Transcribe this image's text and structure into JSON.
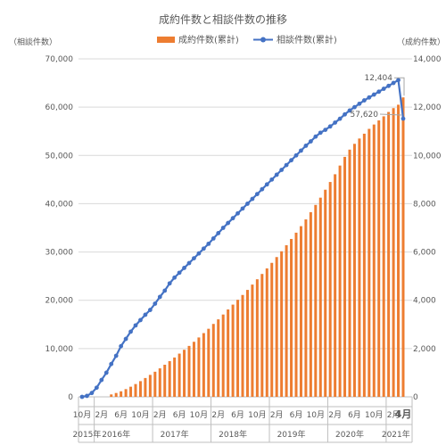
{
  "chart_data": {
    "type": "bar+line",
    "title": "成約件数と相談件数の推移",
    "left_axis_label": "（相談件数）",
    "right_axis_label": "（成約件数）",
    "left_ylim": [
      0,
      70000
    ],
    "right_ylim": [
      0,
      14000
    ],
    "left_ticks": [
      "0",
      "10,000",
      "20,000",
      "30,000",
      "40,000",
      "50,000",
      "60,000",
      "70,000"
    ],
    "right_ticks": [
      "0",
      "2,000",
      "4,000",
      "6,000",
      "8,000",
      "10,000",
      "12,000",
      "14,000"
    ],
    "left_tick_values": [
      0,
      10000,
      20000,
      30000,
      40000,
      50000,
      60000,
      70000
    ],
    "right_tick_values": [
      0,
      2000,
      4000,
      6000,
      8000,
      10000,
      12000,
      14000
    ],
    "grid": "horizontal",
    "legend_position": "top",
    "month_labels": [
      {
        "label": "10月",
        "month": 0
      },
      {
        "label": "2月",
        "month": 4
      },
      {
        "label": "6月",
        "month": 8
      },
      {
        "label": "10月",
        "month": 12
      },
      {
        "label": "2月",
        "month": 16
      },
      {
        "label": "6月",
        "month": 20
      },
      {
        "label": "10月",
        "month": 24
      },
      {
        "label": "2月",
        "month": 28
      },
      {
        "label": "6月",
        "month": 32
      },
      {
        "label": "10月",
        "month": 36
      },
      {
        "label": "2月",
        "month": 40
      },
      {
        "label": "6月",
        "month": 44
      },
      {
        "label": "10月",
        "month": 48
      },
      {
        "label": "2月",
        "month": 52
      },
      {
        "label": "6月",
        "month": 56
      },
      {
        "label": "10月",
        "month": 60
      },
      {
        "label": "2月",
        "month": 64
      },
      {
        "label": "4月",
        "month": 66
      }
    ],
    "year_labels": [
      {
        "label": "2015年",
        "month": 1
      },
      {
        "label": "2016年",
        "month": 7
      },
      {
        "label": "2017年",
        "month": 19
      },
      {
        "label": "2018年",
        "month": 31
      },
      {
        "label": "2019年",
        "month": 43
      },
      {
        "label": "2020年",
        "month": 55
      },
      {
        "label": "2021年",
        "month": 64.5
      }
    ],
    "year_boundaries": [
      2.5,
      14.5,
      26.5,
      38.5,
      50.5,
      62.5
    ],
    "annotations": [
      {
        "label": "12,404",
        "series": "bars",
        "month": 66,
        "value": 12404
      },
      {
        "label": "57,620",
        "series": "line",
        "month": 66,
        "value": 57620
      }
    ],
    "series": [
      {
        "name": "成約件数(累計)",
        "axis": "right",
        "render": "bar",
        "color": "#ED7D31",
        "start_month": 0,
        "values": [
          0,
          0,
          0,
          0,
          0,
          0,
          100,
          160,
          230,
          320,
          420,
          530,
          650,
          780,
          910,
          1040,
          1180,
          1330,
          1480,
          1630,
          1790,
          1950,
          2110,
          2280,
          2460,
          2640,
          2820,
          3020,
          3210,
          3410,
          3620,
          3820,
          4020,
          4220,
          4430,
          4650,
          4870,
          5090,
          5320,
          5550,
          5790,
          6030,
          6280,
          6540,
          6800,
          7070,
          7350,
          7650,
          7950,
          8250,
          8580,
          8900,
          9220,
          9580,
          9940,
          10240,
          10480,
          10700,
          10900,
          11100,
          11280,
          11450,
          11620,
          11800,
          11960,
          12100,
          12404
        ]
      },
      {
        "name": "相談件数(累計)",
        "axis": "left",
        "render": "line",
        "color": "#4472C4",
        "start_month": 0,
        "values": [
          0,
          200,
          800,
          1900,
          3500,
          5000,
          6800,
          8500,
          10500,
          12000,
          13500,
          14800,
          15900,
          17000,
          18000,
          19300,
          20700,
          22000,
          23500,
          24700,
          25700,
          26700,
          27700,
          28700,
          29700,
          30700,
          31700,
          32800,
          33900,
          35000,
          36000,
          37000,
          38000,
          39000,
          40000,
          41000,
          42000,
          43000,
          44000,
          45000,
          46000,
          47000,
          48000,
          49000,
          50000,
          51000,
          52000,
          52900,
          53900,
          54700,
          55300,
          56000,
          56800,
          57600,
          58500,
          59300,
          60000,
          60700,
          61400,
          62000,
          62600,
          63200,
          63800,
          64400,
          65000,
          65600,
          57620
        ]
      }
    ]
  }
}
